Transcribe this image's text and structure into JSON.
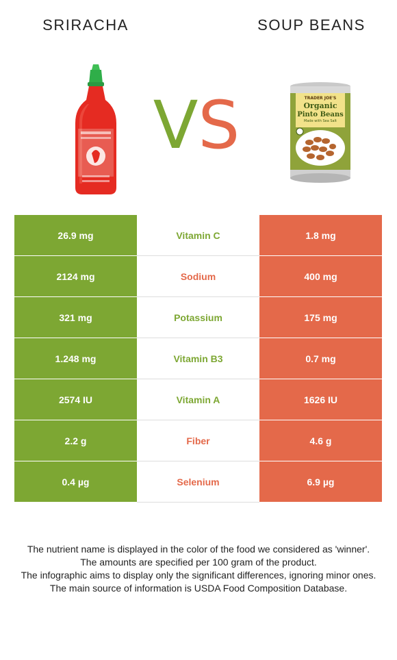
{
  "header": {
    "left_food": "SRIRACHA",
    "right_food": "SOUP BEANS",
    "vs_v": "V",
    "vs_s": "S"
  },
  "images": {
    "left": "sriracha-bottle-image",
    "right": "soup-beans-can-image",
    "can_brand": "TRADER JOE'S",
    "can_line1": "Organic",
    "can_line2": "Pinto Beans",
    "can_line3": "Made with Sea Salt"
  },
  "colors": {
    "left_food": "#7da733",
    "right_food": "#e4694a"
  },
  "rows": [
    {
      "left": "26.9 mg",
      "nutrient": "Vitamin C",
      "right": "1.8 mg",
      "winner": "left"
    },
    {
      "left": "2124 mg",
      "nutrient": "Sodium",
      "right": "400 mg",
      "winner": "right"
    },
    {
      "left": "321 mg",
      "nutrient": "Potassium",
      "right": "175 mg",
      "winner": "left"
    },
    {
      "left": "1.248 mg",
      "nutrient": "Vitamin B3",
      "right": "0.7 mg",
      "winner": "left"
    },
    {
      "left": "2574 IU",
      "nutrient": "Vitamin A",
      "right": "1626 IU",
      "winner": "left"
    },
    {
      "left": "2.2 g",
      "nutrient": "Fiber",
      "right": "4.6 g",
      "winner": "right"
    },
    {
      "left": "0.4 µg",
      "nutrient": "Selenium",
      "right": "6.9 µg",
      "winner": "right"
    }
  ],
  "notes": [
    "The nutrient name is displayed in the color of the food we considered as 'winner'.",
    "The amounts are specified per 100 gram of the product.",
    "The infographic aims to display only the significant differences, ignoring minor ones.",
    "The main source of information is USDA Food Composition Database."
  ]
}
